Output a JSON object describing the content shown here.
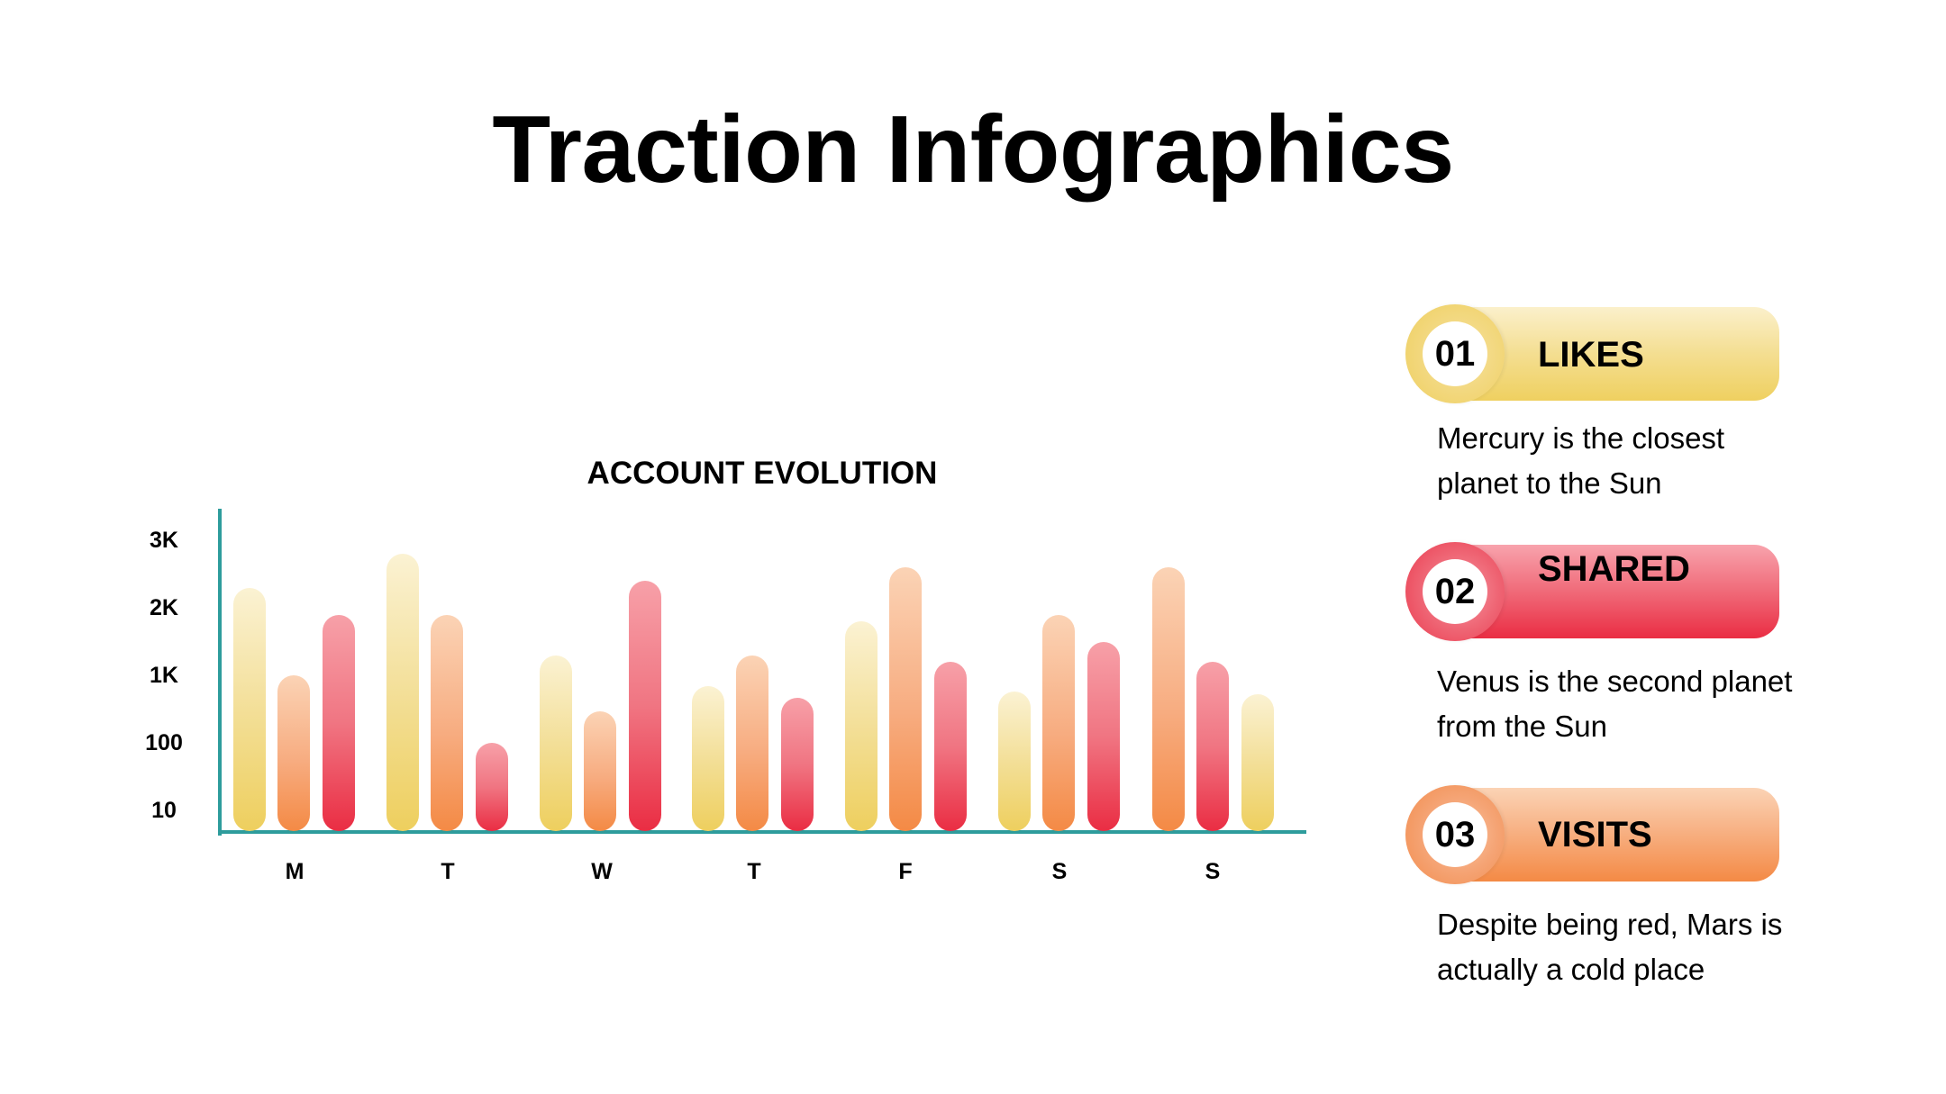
{
  "header": {
    "title": "Traction Infographics"
  },
  "chart_data": {
    "type": "bar",
    "title": "ACCOUNT EVOLUTION",
    "xlabel": "",
    "ylabel": "",
    "y_scale": "ordinal-log (ticks evenly spaced)",
    "y_ticks": [
      "10",
      "100",
      "1K",
      "2K",
      "3K"
    ],
    "y_tick_values": [
      10,
      100,
      1000,
      2000,
      3000
    ],
    "categories": [
      "M",
      "T",
      "W",
      "T",
      "F",
      "S",
      "S"
    ],
    "grid": false,
    "legend": "none",
    "series": [
      {
        "name": "Likes",
        "color": "#EECF5E",
        "values": [
          2300,
          2800,
          1300,
          860,
          1800,
          780,
          750
        ]
      },
      {
        "name": "Visits",
        "color": "#F48A45",
        "values": [
          1000,
          1900,
          520,
          1300,
          2600,
          1900,
          2600
        ]
      },
      {
        "name": "Shared",
        "color": "#EA2D43",
        "values": [
          1900,
          100,
          2400,
          700,
          1200,
          1500,
          1200
        ]
      }
    ],
    "bar_order_per_category": [
      [
        "Likes",
        "Visits",
        "Shared"
      ],
      [
        "Likes",
        "Visits",
        "Shared"
      ],
      [
        "Likes",
        "Visits",
        "Shared"
      ],
      [
        "Likes",
        "Visits",
        "Shared"
      ],
      [
        "Likes",
        "Visits",
        "Shared"
      ],
      [
        "Likes",
        "Visits",
        "Shared"
      ],
      [
        "Visits",
        "Shared",
        "Likes"
      ]
    ],
    "axis_color": "#2E9C9C"
  },
  "legend_items": [
    {
      "number": "01",
      "label": "LIKES",
      "description": "Mercury is the closest planet to the Sun",
      "color": "#EECF5E"
    },
    {
      "number": "02",
      "label": "SHARED",
      "description": "Venus is the second planet from the Sun",
      "color": "#EA2D43"
    },
    {
      "number": "03",
      "label": "VISITS",
      "description": "Despite being red, Mars is actually a cold place",
      "color": "#F48A45"
    }
  ]
}
